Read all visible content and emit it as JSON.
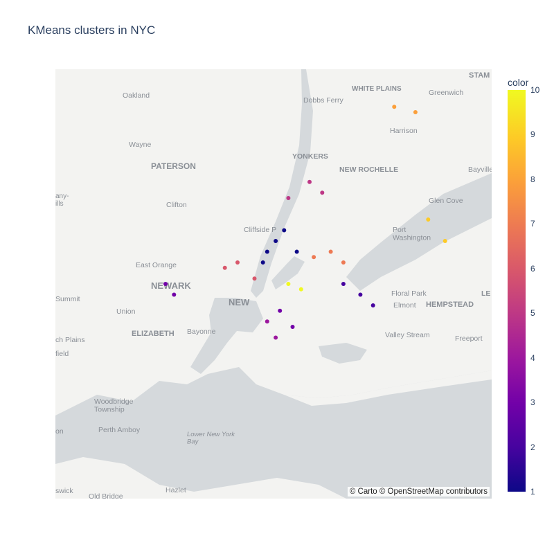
{
  "title": "KMeans clusters in NYC",
  "attribution": "© Carto © OpenStreetMap contributors",
  "colorbar": {
    "title": "color",
    "ticks": [
      "10",
      "9",
      "8",
      "7",
      "6",
      "5",
      "4",
      "3",
      "2",
      "1"
    ],
    "range": [
      1,
      10
    ],
    "colorscale": [
      "#0d0887",
      "#46039f",
      "#7201a8",
      "#9c179e",
      "#bd3786",
      "#d8576b",
      "#ed7953",
      "#fb9f3a",
      "#fdca26",
      "#f0f921"
    ]
  },
  "basemap_labels": {
    "stam": "STAM",
    "white_plains": "WHITE PLAINS",
    "oakland": "Oakland",
    "dobbs_ferry": "Dobbs Ferry",
    "greenwich": "Greenwich",
    "harrison": "Harrison",
    "wayne": "Wayne",
    "yonkers": "YONKERS",
    "paterson": "PATERSON",
    "new_rochelle": "NEW ROCHELLE",
    "bayville": "Bayville",
    "hills": "any-\nills",
    "clifton": "Clifton",
    "glen_cove": "Glen Cove",
    "cliffside_park": "Cliffside P",
    "port_washington": "Port\nWashington",
    "east_orange": "East Orange",
    "newark": "NEWARK",
    "floral_park": "Floral Park",
    "summit": "Summit",
    "new_york": "NEW",
    "elmont": "Elmont",
    "hempstead": "HEMPSTEAD",
    "le": "LE",
    "union": "Union",
    "elizabeth": "ELIZABETH",
    "bayonne": "Bayonne",
    "valley_stream": "Valley Stream",
    "freeport": "Freeport",
    "ch_plains": "ch Plains",
    "field": "field",
    "woodbridge": "Woodbridge\nTownship",
    "perth_amboy": "Perth Amboy",
    "on": "on",
    "lower_ny_bay": "Lower New York\nBay",
    "hazlet": "Hazlet",
    "swick": "swick",
    "old_bridge": "Old Bridge"
  },
  "chart_data": {
    "type": "scatter",
    "x_label": "",
    "y_label": "",
    "color_label": "color",
    "points": [
      {
        "lon": -73.98,
        "lat": 40.76,
        "cluster": 1
      },
      {
        "lon": -73.96,
        "lat": 40.78,
        "cluster": 1
      },
      {
        "lon": -73.94,
        "lat": 40.8,
        "cluster": 1
      },
      {
        "lon": -73.99,
        "lat": 40.74,
        "cluster": 1
      },
      {
        "lon": -73.91,
        "lat": 40.76,
        "cluster": 1
      },
      {
        "lon": -73.76,
        "lat": 40.68,
        "cluster": 2
      },
      {
        "lon": -73.73,
        "lat": 40.66,
        "cluster": 2
      },
      {
        "lon": -73.8,
        "lat": 40.7,
        "cluster": 2
      },
      {
        "lon": -73.95,
        "lat": 40.65,
        "cluster": 3
      },
      {
        "lon": -73.92,
        "lat": 40.62,
        "cluster": 3
      },
      {
        "lon": -74.2,
        "lat": 40.68,
        "cluster": 3
      },
      {
        "lon": -74.22,
        "lat": 40.7,
        "cluster": 3
      },
      {
        "lon": -73.98,
        "lat": 40.63,
        "cluster": 4
      },
      {
        "lon": -73.96,
        "lat": 40.6,
        "cluster": 4
      },
      {
        "lon": -73.93,
        "lat": 40.86,
        "cluster": 5
      },
      {
        "lon": -73.88,
        "lat": 40.89,
        "cluster": 5
      },
      {
        "lon": -73.85,
        "lat": 40.87,
        "cluster": 5
      },
      {
        "lon": -74.01,
        "lat": 40.71,
        "cluster": 6
      },
      {
        "lon": -74.05,
        "lat": 40.74,
        "cluster": 6
      },
      {
        "lon": -74.08,
        "lat": 40.73,
        "cluster": 6
      },
      {
        "lon": -73.87,
        "lat": 40.75,
        "cluster": 7
      },
      {
        "lon": -73.83,
        "lat": 40.76,
        "cluster": 7
      },
      {
        "lon": -73.8,
        "lat": 40.74,
        "cluster": 7
      },
      {
        "lon": -73.68,
        "lat": 41.03,
        "cluster": 8
      },
      {
        "lon": -73.63,
        "lat": 41.02,
        "cluster": 8
      },
      {
        "lon": -73.6,
        "lat": 40.82,
        "cluster": 9
      },
      {
        "lon": -73.56,
        "lat": 40.78,
        "cluster": 9
      },
      {
        "lon": -73.93,
        "lat": 40.7,
        "cluster": 10
      },
      {
        "lon": -73.9,
        "lat": 40.69,
        "cluster": 10
      }
    ]
  }
}
